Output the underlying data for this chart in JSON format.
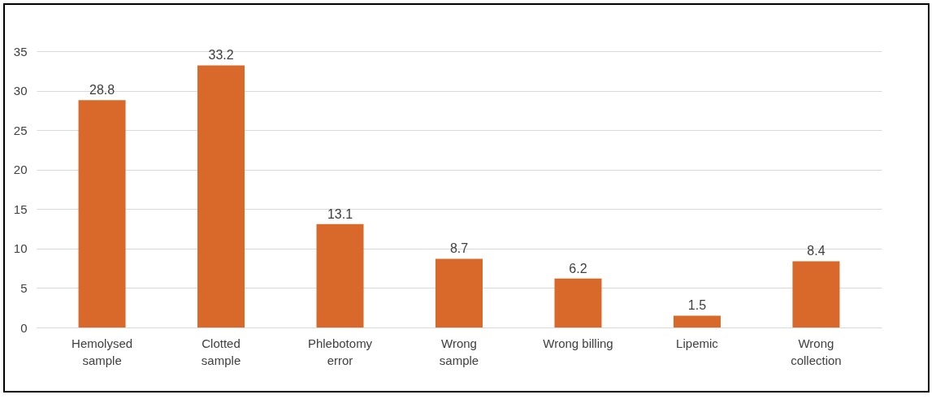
{
  "chart_data": {
    "type": "bar",
    "categories": [
      "Hemolysed\nsample",
      "Clotted\nsample",
      "Phlebotomy\nerror",
      "Wrong\nsample",
      "Wrong billing",
      "Lipemic",
      "Wrong\ncollection"
    ],
    "values": [
      28.8,
      33.2,
      13.1,
      8.7,
      6.2,
      1.5,
      8.4
    ],
    "color": "#d9692a",
    "ylim": [
      0,
      35
    ],
    "yticks": [
      0,
      5,
      10,
      15,
      20,
      25,
      30,
      35
    ],
    "grid": "y",
    "data_labels": true
  }
}
